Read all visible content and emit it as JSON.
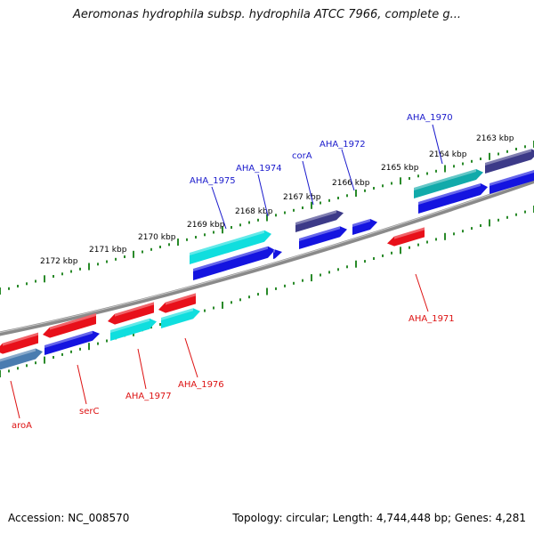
{
  "title": "Aeromonas hydrophila subsp. hydrophila ATCC 7966, complete g...",
  "footer": {
    "accession": "Accession: NC_008570",
    "topology": "Topology: circular; Length: 4,744,448 bp; Genes: 4,281"
  },
  "colors": {
    "red": "#e8101a",
    "cyan": "#10dede",
    "blue": "#1414e0",
    "navy": "#3c3a88",
    "steel": "#4a7cb0",
    "teal": "#11aaaa",
    "backbone": "#808080",
    "ticks": "#2a8a2a",
    "label_blue": "#1a1acc",
    "label_red": "#dd1111"
  },
  "ticks": [
    "2163 kbp",
    "2164 kbp",
    "2165 kbp",
    "2166 kbp",
    "2167 kbp",
    "2168 kbp",
    "2169 kbp",
    "2170 kbp",
    "2171 kbp",
    "2172 kbp"
  ],
  "genes_top": [
    "AHA_1970",
    "AHA_1972",
    "corA",
    "AHA_1974",
    "AHA_1975"
  ],
  "genes_bottom": [
    "AHA_1971",
    "AHA_1976",
    "AHA_1977",
    "serC",
    "aroA"
  ]
}
